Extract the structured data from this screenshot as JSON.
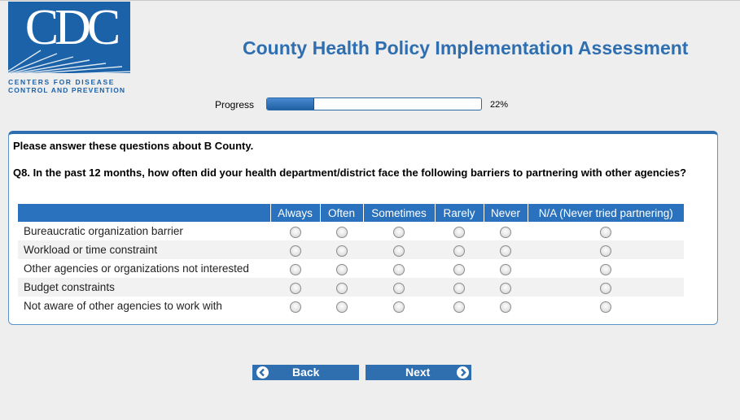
{
  "logo": {
    "letters": "CDC",
    "line1": "CENTERS FOR DISEASE",
    "line2": "CONTROL AND PREVENTION"
  },
  "page_title": "County Health Policy Implementation Assessment",
  "progress": {
    "label": "Progress",
    "percent_text": "22%",
    "value": 0.22
  },
  "survey": {
    "intro": "Please answer these questions about B County.",
    "question": "Q8. In the past 12 months, how often did your health department/district face the following barriers to partnering with other agencies?",
    "columns": [
      "Always",
      "Often",
      "Sometimes",
      "Rarely",
      "Never",
      "N/A (Never tried partnering)"
    ],
    "rows": [
      "Bureaucratic organization barrier",
      "Workload or time constraint",
      "Other agencies or organizations not interested",
      "Budget constraints",
      "Not aware of other agencies to work with"
    ]
  },
  "buttons": {
    "back": "Back",
    "next": "Next"
  },
  "colors": {
    "brand_blue": "#2f6fb0",
    "header_blue": "#2a72bd",
    "logo_blue": "#1c62a8"
  },
  "icons": {
    "back": "chevron-left-circle-icon",
    "next": "chevron-right-circle-icon"
  }
}
